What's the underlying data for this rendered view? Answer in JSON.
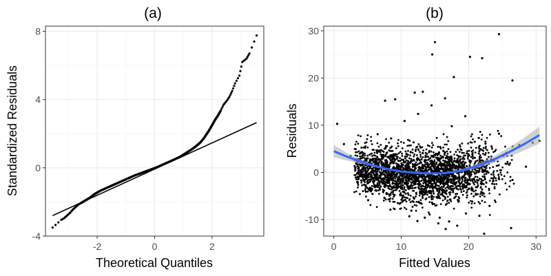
{
  "chart_data": [
    {
      "type": "scatter",
      "title": "(a)",
      "xlabel": "Theoretical Quantiles",
      "ylabel": "Standardized Residuals",
      "xlim": [
        -3.8,
        3.8
      ],
      "ylim": [
        -4,
        8.3
      ],
      "xticks": [
        -2,
        0,
        2
      ],
      "xtick_labels": [
        "-2",
        "0",
        "2"
      ],
      "yticks": [
        -4,
        0,
        4,
        8
      ],
      "ytick_labels": [
        "-4",
        "0",
        "4",
        "8"
      ],
      "grid": true,
      "reference_line": {
        "x": [
          -3.55,
          3.55
        ],
        "y": [
          -2.8,
          2.65
        ],
        "color": "#000000"
      },
      "series": [
        {
          "points_x": [
            -3.55,
            -3.25,
            -3.15,
            -3.05,
            -2.95,
            -2.85,
            -2.75,
            -2.65,
            -2.55,
            -2.45,
            -2.35,
            -2.25,
            -2.1,
            -2.0,
            -1.9,
            -1.7,
            -1.5,
            -1.3,
            -1.1,
            -0.9,
            -0.7,
            -0.5,
            -0.3,
            -0.1,
            0.1,
            0.3,
            0.5,
            0.7,
            0.9,
            1.05,
            1.2,
            1.35,
            1.5,
            1.6,
            1.7,
            1.8,
            1.9,
            2.0,
            2.1,
            2.2,
            2.3,
            2.4,
            2.5,
            2.6,
            2.7,
            2.8,
            2.95,
            3.05,
            3.2,
            3.3,
            3.55
          ],
          "points_y": [
            -3.5,
            -3.05,
            -2.95,
            -2.8,
            -2.65,
            -2.45,
            -2.3,
            -2.15,
            -2.05,
            -1.95,
            -1.85,
            -1.75,
            -1.55,
            -1.45,
            -1.35,
            -1.2,
            -1.05,
            -0.9,
            -0.75,
            -0.6,
            -0.45,
            -0.33,
            -0.2,
            -0.08,
            0.05,
            0.2,
            0.35,
            0.5,
            0.66,
            0.82,
            0.98,
            1.15,
            1.35,
            1.5,
            1.7,
            1.95,
            2.2,
            2.5,
            2.8,
            3.05,
            3.35,
            3.7,
            3.9,
            4.15,
            4.5,
            4.95,
            5.4,
            6.2,
            6.4,
            6.7,
            7.75
          ],
          "color": "#000000"
        }
      ]
    },
    {
      "type": "scatter",
      "title": "(b)",
      "xlabel": "Fitted Values",
      "ylabel": "Residuals",
      "xlim": [
        -1.5,
        31.5
      ],
      "ylim": [
        -13.5,
        31
      ],
      "xticks": [
        0,
        10,
        20,
        30
      ],
      "xtick_labels": [
        "0",
        "10",
        "20",
        "30"
      ],
      "yticks": [
        -10,
        0,
        10,
        20,
        30
      ],
      "ytick_labels": [
        "-10",
        "0",
        "10",
        "20",
        "30"
      ],
      "grid": true,
      "smooth_line": {
        "x": [
          0,
          2,
          4,
          6,
          8,
          10,
          12,
          14,
          16,
          18,
          20,
          22,
          24,
          26,
          28,
          30.5
        ],
        "y": [
          4.5,
          3.3,
          2.3,
          1.4,
          0.7,
          0.2,
          -0.1,
          -0.2,
          -0.2,
          0.1,
          0.8,
          1.7,
          2.9,
          4.3,
          5.8,
          7.9
        ],
        "band_halfwidth": [
          1.3,
          0.8,
          0.4,
          0.25,
          0.2,
          0.15,
          0.15,
          0.15,
          0.2,
          0.25,
          0.35,
          0.5,
          0.7,
          1.0,
          1.3,
          1.8
        ],
        "color": "#3366ff",
        "band_color": "#b3b3b3"
      },
      "series": [
        {
          "points_x": [
            0.5,
            1.5,
            2.5,
            3.5,
            4.5,
            5.5,
            6.5,
            7.5,
            8.5,
            9.5,
            10.5,
            11.5,
            12.5,
            13.5,
            14.5,
            15.5,
            16.5,
            17.5,
            18.5,
            19.5,
            20.5,
            21.5,
            22.5,
            23.5,
            24.5,
            25.5,
            26.5,
            27.5,
            28.5,
            29.5,
            30.5,
            15.0,
            14.6,
            24.5,
            20.2,
            22.0,
            26.5,
            17.8,
            13.2,
            12.0,
            9.1,
            7.6,
            16.6,
            18.3,
            14.2,
            21.6,
            22.3,
            12.4,
            15.7,
            19.6,
            26.3,
            8.4,
            11.2,
            5.1,
            17.1,
            23.1
          ],
          "points_y": [
            10.3,
            6.0,
            3.5,
            2.8,
            -2.6,
            -4.0,
            8.1,
            -5.4,
            7.2,
            -6.5,
            10.9,
            -8.1,
            12.4,
            -9.6,
            14.2,
            -10.8,
            15.7,
            9.8,
            -6.2,
            11.9,
            -3.8,
            7.3,
            6.1,
            -2.4,
            8.2,
            3.9,
            -1.6,
            5.8,
            1.2,
            6.3,
            6.7,
            27.6,
            25.0,
            29.3,
            24.5,
            24.2,
            19.5,
            20.2,
            17.1,
            16.9,
            15.5,
            15.2,
            -12.0,
            -11.3,
            -8.9,
            -9.2,
            -13.0,
            -10.3,
            -9.6,
            -8.7,
            -11.8,
            -7.9,
            -9.3,
            -5.9,
            -10.4,
            -7.1
          ],
          "color": "#000000"
        }
      ]
    }
  ]
}
